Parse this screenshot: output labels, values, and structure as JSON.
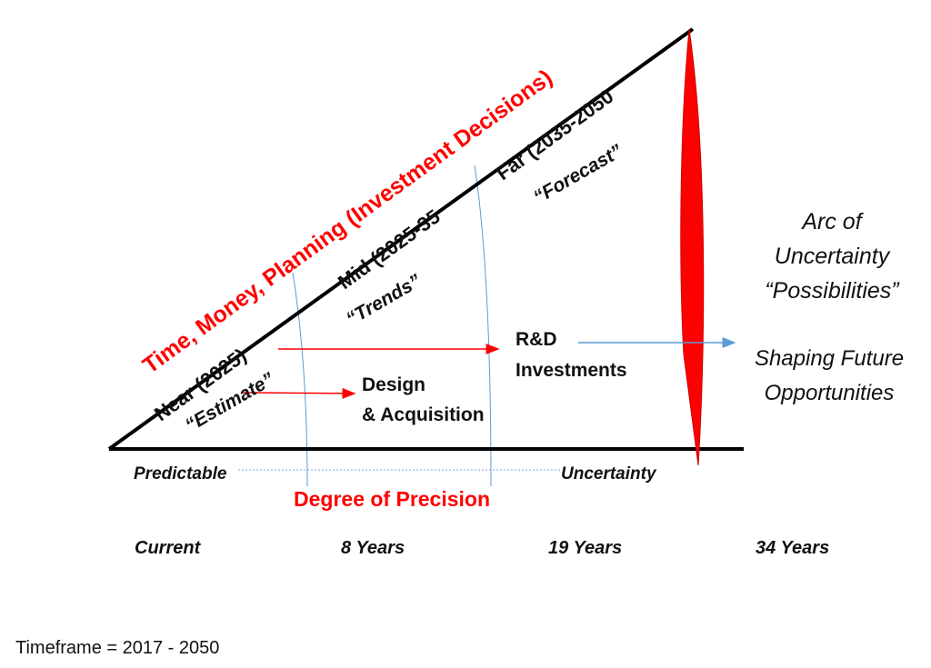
{
  "colors": {
    "accent_red": "#ff0000",
    "line_black": "#000000",
    "guide_blue": "#5b9bd5"
  },
  "diagonal_title": "Time, Money, Planning (Investment Decisions)",
  "horizons": {
    "near": "Near (2025)",
    "mid": "Mid (2025-35",
    "far": "Far (2035-2050"
  },
  "quotes": {
    "estimate": "“Estimate”",
    "trends": "“Trends”",
    "forecast": "“Forecast”"
  },
  "design_acquisition": [
    "Design",
    "& Acquisition"
  ],
  "rd_investments": [
    "R&D",
    "Investments"
  ],
  "arc": [
    "Arc of",
    "Uncertainty",
    "“Possibilities”"
  ],
  "shaping": [
    "Shaping Future",
    "Opportunities"
  ],
  "axis": {
    "left": "Predictable",
    "right": "Uncertainty",
    "title": "Degree of Precision"
  },
  "timeline": [
    "Current",
    "8 Years",
    "19 Years",
    "34 Years"
  ],
  "footer": "Timeframe = 2017 - 2050"
}
